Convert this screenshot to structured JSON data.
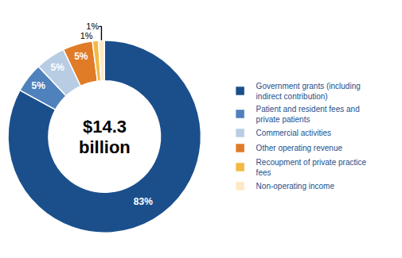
{
  "chart_data": {
    "type": "donut",
    "categories": [
      "Government grants (including\nindirect contribution)",
      "Patient and resident fees and\nprivate patients",
      "Commercial activities",
      "Other operating revenue",
      "Recoupment of private practice\nfees",
      "Non-operating income"
    ],
    "values": [
      83,
      5,
      5,
      5,
      1,
      1
    ],
    "value_labels": [
      "83%",
      "5%",
      "5%",
      "5%",
      "1%",
      "1%"
    ],
    "colors": [
      "#1B4F8C",
      "#4F81BD",
      "#B8CCE4",
      "#E07B27",
      "#F4B942",
      "#FDE9C5"
    ],
    "data_labels": true,
    "annotations": [
      "$14.3",
      "billion"
    ],
    "legend": "right"
  }
}
